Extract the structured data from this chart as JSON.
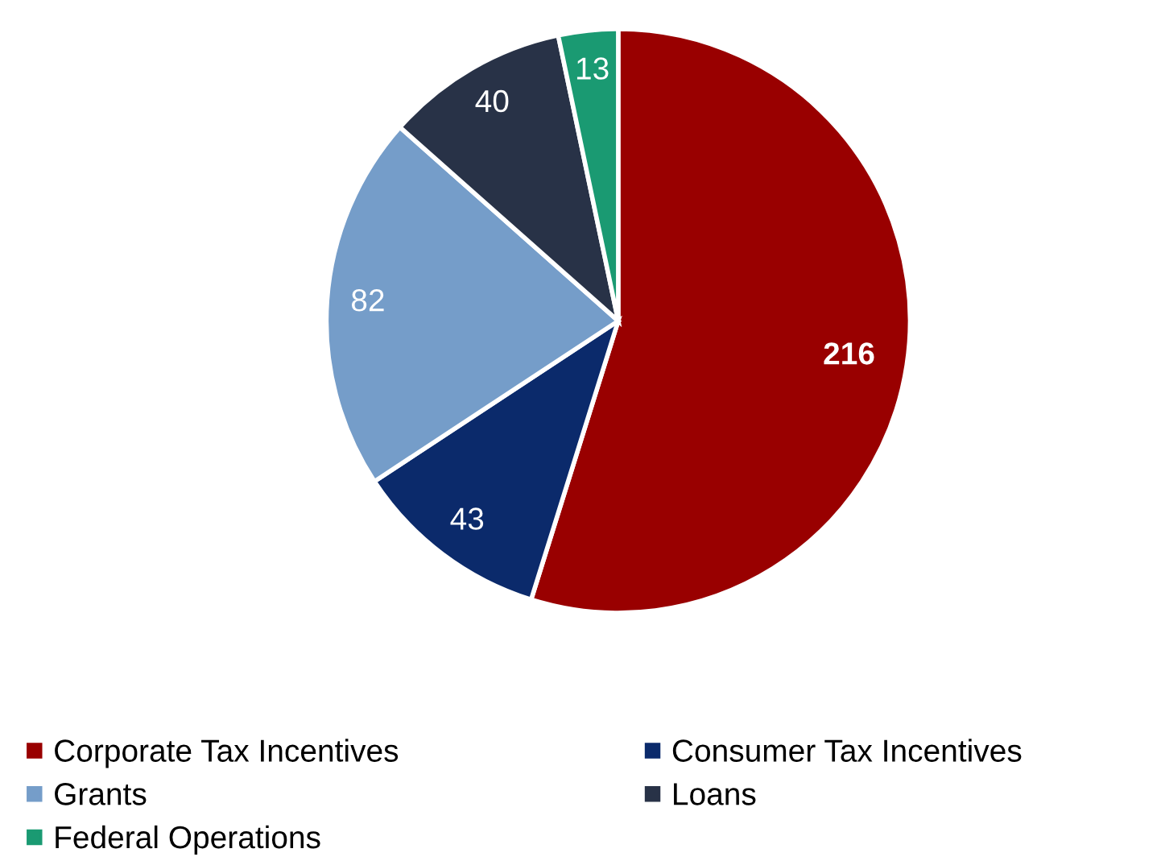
{
  "chart_data": {
    "type": "pie",
    "categories": [
      "Corporate Tax Incentives",
      "Consumer Tax Incentives",
      "Grants",
      "Loans",
      "Federal Operations"
    ],
    "values": [
      216,
      43,
      82,
      40,
      13
    ],
    "colors": [
      "#990000",
      "#0b2a6b",
      "#759dc9",
      "#283247",
      "#1a9a72"
    ],
    "data_labels": true,
    "legend": "bottom"
  }
}
